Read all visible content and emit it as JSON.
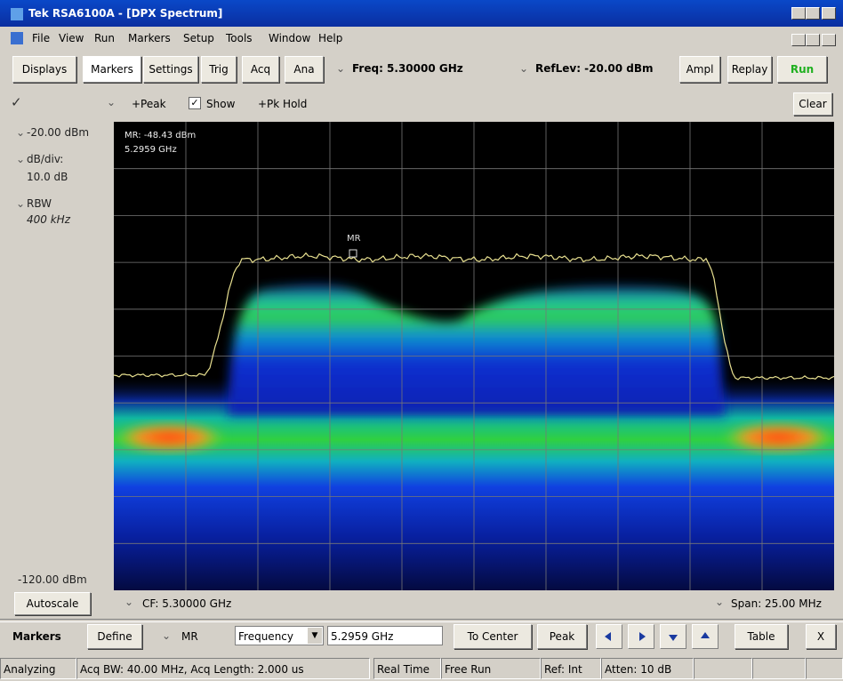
{
  "window": {
    "title": "Tek RSA6100A - [DPX Spectrum]"
  },
  "menu": [
    "File",
    "View",
    "Run",
    "Markers",
    "Setup",
    "Tools",
    "Window",
    "Help"
  ],
  "toolbar": {
    "buttons": [
      "Displays",
      "Markers",
      "Settings",
      "Trig",
      "Acq",
      "Ana"
    ],
    "freq": "Freq: 5.30000 GHz",
    "ref_level": "RefLev: -20.00 dBm",
    "ampl": "Ampl",
    "replay": "Replay",
    "run": "Run"
  },
  "trace_bar": {
    "peak": "+Peak",
    "show": "Show",
    "pk_hold": "+Pk Hold",
    "clear": "Clear"
  },
  "left_panel": {
    "ref": "-20.00 dBm",
    "scale_label": "dB/div:",
    "scale": "10.0 dB",
    "rbw_label": "RBW",
    "rbw": "400 kHz",
    "bottom": "-120.00 dBm",
    "autoscale": "Autoscale"
  },
  "plot": {
    "readout": [
      "MR: -48.43 dBm",
      "5.2959 GHz"
    ],
    "marker": "MR",
    "cf": "CF: 5.30000 GHz",
    "span": "Span: 25.00 MHz"
  },
  "markers_bar": {
    "title": "Markers",
    "define": "Define",
    "marker": "MR",
    "param": "Frequency",
    "value": "5.2959 GHz",
    "to_center": "To Center",
    "peak": "Peak",
    "table": "Table",
    "close": "X"
  },
  "status": [
    "Analyzing",
    "Acq BW: 40.00 MHz, Acq Length: 2.000 us",
    "Real Time",
    "Free Run",
    "Ref: Int",
    "Atten: 10 dB"
  ]
}
